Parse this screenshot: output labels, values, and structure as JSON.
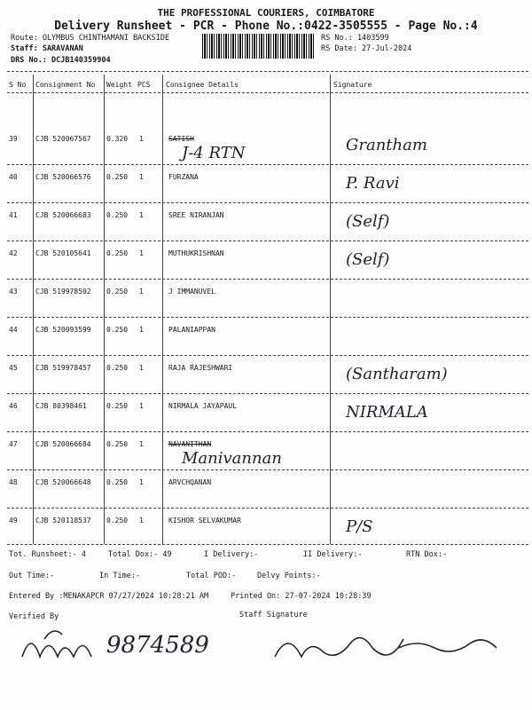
{
  "header": {
    "company": "THE PROFESSIONAL COURIERS, COIMBATORE",
    "subtitle": "Delivery Runsheet - PCR - Phone No.:0422-3505555 - Page No.:4",
    "route": "Route: OLYMBUS CHINTHAMANI BACKSIDE",
    "staff": "Staff: SARAVANAN",
    "drs": "DRS No.: DCJB140359904",
    "rs_no": "RS No.: 1403599",
    "rs_date": "RS Date: 27-Jul-2024"
  },
  "table": {
    "columns": [
      "S No",
      "Consignment No",
      "Weight",
      "PCS",
      "Consignee Details",
      "Signature"
    ],
    "rows": [
      {
        "sno": "39",
        "cons": "CJB 520067567",
        "weight": "0.320",
        "pcs": "1",
        "name": "SATISH",
        "struck": true,
        "hw_note": "J-4 RTN",
        "sig": "Grantham"
      },
      {
        "sno": "40",
        "cons": "CJB 520066576",
        "weight": "0.250",
        "pcs": "1",
        "name": "FURZANA",
        "sig": "P. Ravi"
      },
      {
        "sno": "41",
        "cons": "CJB 520066683",
        "weight": "0.250",
        "pcs": "1",
        "name": "SREE NIRANJAN",
        "sig": "(Self)"
      },
      {
        "sno": "42",
        "cons": "CJB 520105641",
        "weight": "0.250",
        "pcs": "1",
        "name": "MUTHUKRISHNAN",
        "sig": "(Self)"
      },
      {
        "sno": "43",
        "cons": "CJB 519978502",
        "weight": "0.250",
        "pcs": "1",
        "name": "J IMMANUVEL",
        "sig": ""
      },
      {
        "sno": "44",
        "cons": "CJB 520093599",
        "weight": "0.250",
        "pcs": "1",
        "name": "PALANIAPPAN",
        "sig": ""
      },
      {
        "sno": "45",
        "cons": "CJB 519978457",
        "weight": "0.250",
        "pcs": "1",
        "name": "RAJA RAJESHWARI",
        "sig": "(Santharam)"
      },
      {
        "sno": "46",
        "cons": "CJB 80398461",
        "weight": "0.250",
        "pcs": "1",
        "name": "NIRMALA JAYAPAUL",
        "sig": "NIRMALA"
      },
      {
        "sno": "47",
        "cons": "CJB 520066684",
        "weight": "0.250",
        "pcs": "1",
        "name": "NAVANITHAN",
        "struck": true,
        "hw_note": "Manivannan",
        "sig": ""
      },
      {
        "sno": "48",
        "cons": "CJB 520066648",
        "weight": "0.250",
        "pcs": "1",
        "name": "ARVCHQANAN",
        "sig": ""
      },
      {
        "sno": "49",
        "cons": "CJB 520118537",
        "weight": "0.250",
        "pcs": "1",
        "name": "KISHOR SELVAKUMAR",
        "sig": "P/S"
      }
    ]
  },
  "footer": {
    "tot_runsheet": "Tot. Runsheet:- 4",
    "total_dox": "Total Dox:-  49",
    "i_delivery": "I Delivery:-",
    "ii_delivery": "II Delivery:-",
    "rtn_dox": "RTN Dox:-",
    "out_time": "Out Time:-",
    "in_time": "In Time:-",
    "total_pod": "Total POD:-",
    "delvy_points": "Delvy Points:-",
    "entered_by": "Entered By :MENAKAPCR 07/27/2024 10:28:21 AM",
    "printed_on": "Printed On: 27-07-2024 10:28:39",
    "verified_by": "Verified By",
    "staff_signature": "Staff Signature",
    "hw_footer": "9874589"
  }
}
